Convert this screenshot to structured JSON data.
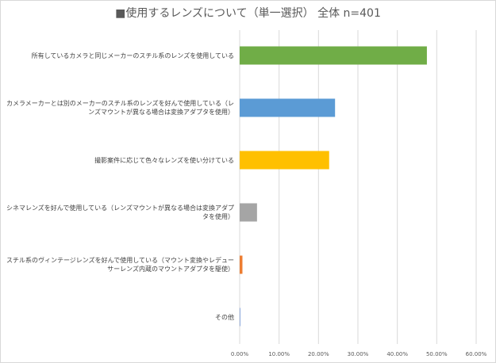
{
  "chart_data": {
    "type": "bar",
    "orientation": "horizontal",
    "title": "■使用するレンズについて（単一選択） 全体 n=401",
    "categories": [
      "所有しているカメラと同じメーカーのスチル系のレンズを使用している",
      "カメラメーカーとは別のメーカーのスチル系のレンズを好んで使用している（レンズマウントが異なる場合は変換アダプタを使用）",
      "撮影案件に応じて色々なレンズを使い分けている",
      "シネマレンズを好んで使用している（レンズマウントが異なる場合は変換アダプタを使用）",
      "スチル系のヴィンテージレンズを好んで使用している（マウント変換やレデューサーレンズ内蔵のマウントアダプタを駆使）",
      "その他"
    ],
    "values": [
      47.5,
      24.2,
      22.7,
      4.4,
      0.7,
      0.2
    ],
    "colors": [
      "#70ad47",
      "#5b9bd5",
      "#ffc000",
      "#a5a5a5",
      "#ed7d31",
      "#8faadc"
    ],
    "xlim": [
      0,
      60
    ],
    "xticks": [
      "0.00%",
      "10.00%",
      "20.00%",
      "30.00%",
      "40.00%",
      "50.00%",
      "60.00%"
    ],
    "xlabel": "",
    "ylabel": "",
    "grid": true,
    "legend": "none"
  }
}
